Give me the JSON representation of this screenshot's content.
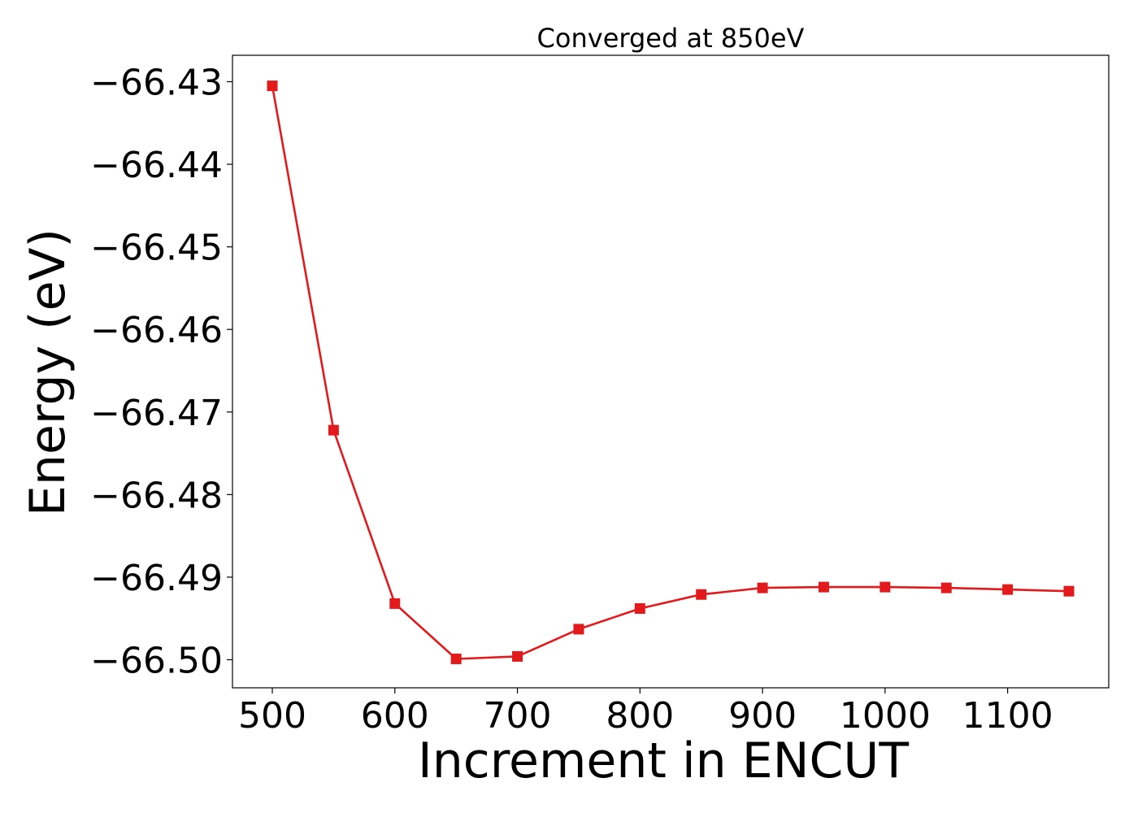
{
  "chart_data": {
    "type": "line",
    "title": "Converged at 850eV",
    "xlabel": "Increment in ENCUT",
    "ylabel": "Energy (eV)",
    "x": [
      500,
      550,
      600,
      650,
      700,
      750,
      800,
      850,
      900,
      950,
      1000,
      1050,
      1100,
      1150
    ],
    "series": [
      {
        "values": [
          -66.4305,
          -66.4722,
          -66.4932,
          -66.4999,
          -66.4996,
          -66.4963,
          -66.4938,
          -66.4921,
          -66.4913,
          -66.4912,
          -66.4912,
          -66.4913,
          -66.4915,
          -66.4917
        ],
        "color": "#e31a1c",
        "marker": "square"
      }
    ],
    "xlim": [
      467.5,
      1182.5
    ],
    "ylim": [
      -66.5034,
      -66.4268
    ],
    "xticks": [
      500,
      600,
      700,
      800,
      900,
      1000,
      1100
    ],
    "xtick_labels": [
      "500",
      "600",
      "700",
      "800",
      "900",
      "1000",
      "1100"
    ],
    "yticks": [
      -66.43,
      -66.44,
      -66.45,
      -66.46,
      -66.47,
      -66.48,
      -66.49,
      -66.5
    ],
    "ytick_labels": [
      "−66.43",
      "−66.44",
      "−66.45",
      "−66.46",
      "−66.47",
      "−66.48",
      "−66.49",
      "−66.50"
    ],
    "grid": false,
    "legend": "none"
  }
}
